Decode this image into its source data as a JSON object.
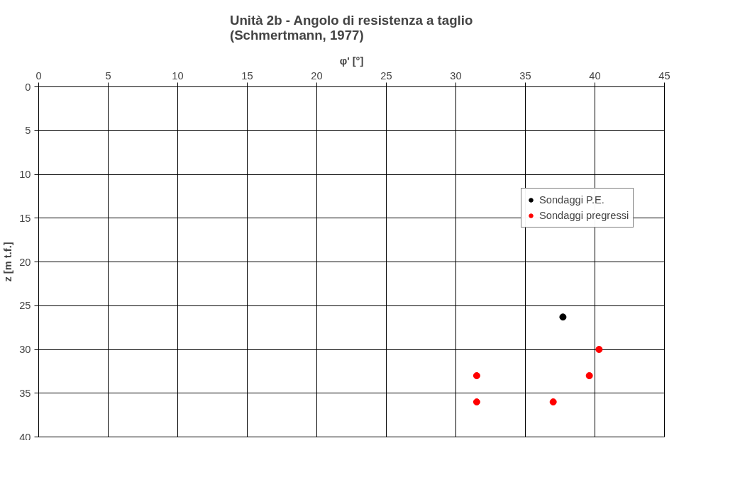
{
  "chart_data": {
    "type": "scatter",
    "title": "Unità 2b - Angolo di resistenza a taglio\n(Schmertmann, 1977)",
    "xlabel": "φ' [°]",
    "ylabel": "z [m t.f.]",
    "xlim": [
      0,
      45
    ],
    "xticks": [
      0,
      5,
      10,
      15,
      20,
      25,
      30,
      35,
      40,
      45
    ],
    "ylim": [
      40,
      0
    ],
    "yticks": [
      0,
      5,
      10,
      15,
      20,
      25,
      30,
      35,
      40
    ],
    "grid": true,
    "legend": "right",
    "marker": "circle",
    "series": [
      {
        "name": "Sondaggi P.E.",
        "color": "#000000",
        "x": [
          37.7
        ],
        "values": [
          26.3
        ]
      },
      {
        "name": "Sondaggi pregressi",
        "color": "#ff0000",
        "x": [
          40.3,
          31.5,
          39.6,
          31.5,
          37.0
        ],
        "values": [
          30.0,
          33.0,
          33.0,
          36.0,
          36.0
        ]
      }
    ]
  }
}
